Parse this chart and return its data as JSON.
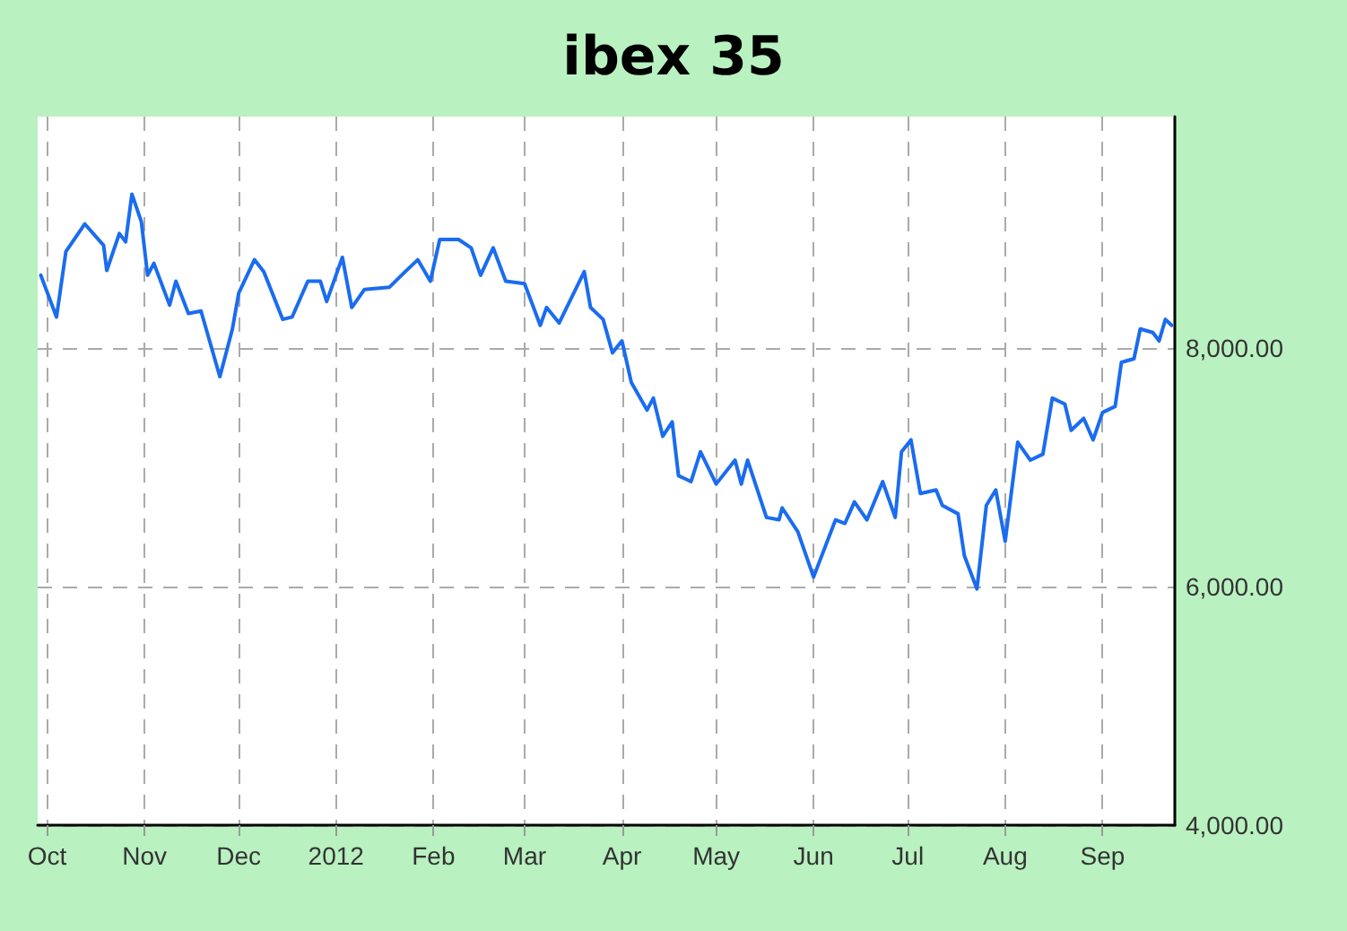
{
  "chart_data": {
    "type": "line",
    "title": "ibex 35",
    "x": [
      "2011-09-29",
      "2011-10-04",
      "2011-10-07",
      "2011-10-13",
      "2011-10-19",
      "2011-10-20",
      "2011-10-24",
      "2011-10-26",
      "2011-10-28",
      "2011-10-31",
      "2011-11-02",
      "2011-11-04",
      "2011-11-09",
      "2011-11-11",
      "2011-11-15",
      "2011-11-19",
      "2011-11-25",
      "2011-11-29",
      "2011-12-01",
      "2011-12-06",
      "2011-12-09",
      "2011-12-15",
      "2011-12-18",
      "2011-12-23",
      "2011-12-27",
      "2011-12-29",
      "2012-01-03",
      "2012-01-06",
      "2012-01-10",
      "2012-01-18",
      "2012-01-23",
      "2012-01-27",
      "2012-01-31",
      "2012-02-03",
      "2012-02-09",
      "2012-02-13",
      "2012-02-16",
      "2012-02-20",
      "2012-02-24",
      "2012-03-01",
      "2012-03-06",
      "2012-03-08",
      "2012-03-12",
      "2012-03-20",
      "2012-03-22",
      "2012-03-26",
      "2012-03-29",
      "2012-04-01",
      "2012-04-04",
      "2012-04-09",
      "2012-04-11",
      "2012-04-14",
      "2012-04-17",
      "2012-04-19",
      "2012-04-23",
      "2012-04-26",
      "2012-05-01",
      "2012-05-07",
      "2012-05-09",
      "2012-05-11",
      "2012-05-17",
      "2012-05-21",
      "2012-05-22",
      "2012-05-27",
      "2012-06-01",
      "2012-06-08",
      "2012-06-11",
      "2012-06-14",
      "2012-06-18",
      "2012-06-23",
      "2012-06-27",
      "2012-06-29",
      "2012-07-02",
      "2012-07-05",
      "2012-07-10",
      "2012-07-12",
      "2012-07-17",
      "2012-07-19",
      "2012-07-23",
      "2012-07-26",
      "2012-07-29",
      "2012-08-01",
      "2012-08-05",
      "2012-08-09",
      "2012-08-13",
      "2012-08-16",
      "2012-08-20",
      "2012-08-22",
      "2012-08-26",
      "2012-08-29",
      "2012-09-01",
      "2012-09-05",
      "2012-09-07",
      "2012-09-11",
      "2012-09-13",
      "2012-09-17",
      "2012-09-19",
      "2012-09-21",
      "2012-09-23"
    ],
    "series": [
      {
        "color": "#1a6cf0",
        "values": [
          8610,
          8260,
          8810,
          9040,
          8860,
          8650,
          8960,
          8890,
          9290,
          9060,
          8610,
          8710,
          8360,
          8560,
          8290,
          8310,
          7760,
          8160,
          8460,
          8740,
          8640,
          8240,
          8260,
          8560,
          8560,
          8390,
          8760,
          8340,
          8490,
          8510,
          8640,
          8740,
          8560,
          8910,
          8910,
          8840,
          8610,
          8840,
          8560,
          8540,
          8190,
          8340,
          8210,
          8640,
          8340,
          8240,
          7960,
          8060,
          7710,
          7480,
          7580,
          7260,
          7380,
          6930,
          6880,
          7130,
          6860,
          7060,
          6860,
          7060,
          6580,
          6560,
          6660,
          6460,
          6080,
          6560,
          6530,
          6710,
          6560,
          6880,
          6580,
          7130,
          7230,
          6780,
          6810,
          6680,
          6610,
          6260,
          5980,
          6680,
          6810,
          6380,
          7210,
          7060,
          7110,
          7580,
          7530,
          7310,
          7410,
          7230,
          7460,
          7510,
          7880,
          7910,
          8160,
          8130,
          8060,
          8240,
          8190
        ]
      }
    ],
    "xlim": [
      "2011-09-28",
      "2012-09-24"
    ],
    "xticks": [
      {
        "value": "2011-10-01",
        "label": "Oct"
      },
      {
        "value": "2011-11-01",
        "label": "Nov"
      },
      {
        "value": "2011-12-01",
        "label": "Dec"
      },
      {
        "value": "2012-01-01",
        "label": "2012"
      },
      {
        "value": "2012-02-01",
        "label": "Feb"
      },
      {
        "value": "2012-03-01",
        "label": "Mar"
      },
      {
        "value": "2012-04-01",
        "label": "Apr"
      },
      {
        "value": "2012-05-01",
        "label": "May"
      },
      {
        "value": "2012-06-01",
        "label": "Jun"
      },
      {
        "value": "2012-07-01",
        "label": "Jul"
      },
      {
        "value": "2012-08-01",
        "label": "Aug"
      },
      {
        "value": "2012-09-01",
        "label": "Sep"
      }
    ],
    "ylim": [
      4000,
      9940
    ],
    "yticks": [
      {
        "value": 4000,
        "label": "4,000.00"
      },
      {
        "value": 6000,
        "label": "6,000.00"
      },
      {
        "value": 8000,
        "label": "8,000.00"
      }
    ],
    "grid": true,
    "marker": "none",
    "line_style": "solid"
  }
}
